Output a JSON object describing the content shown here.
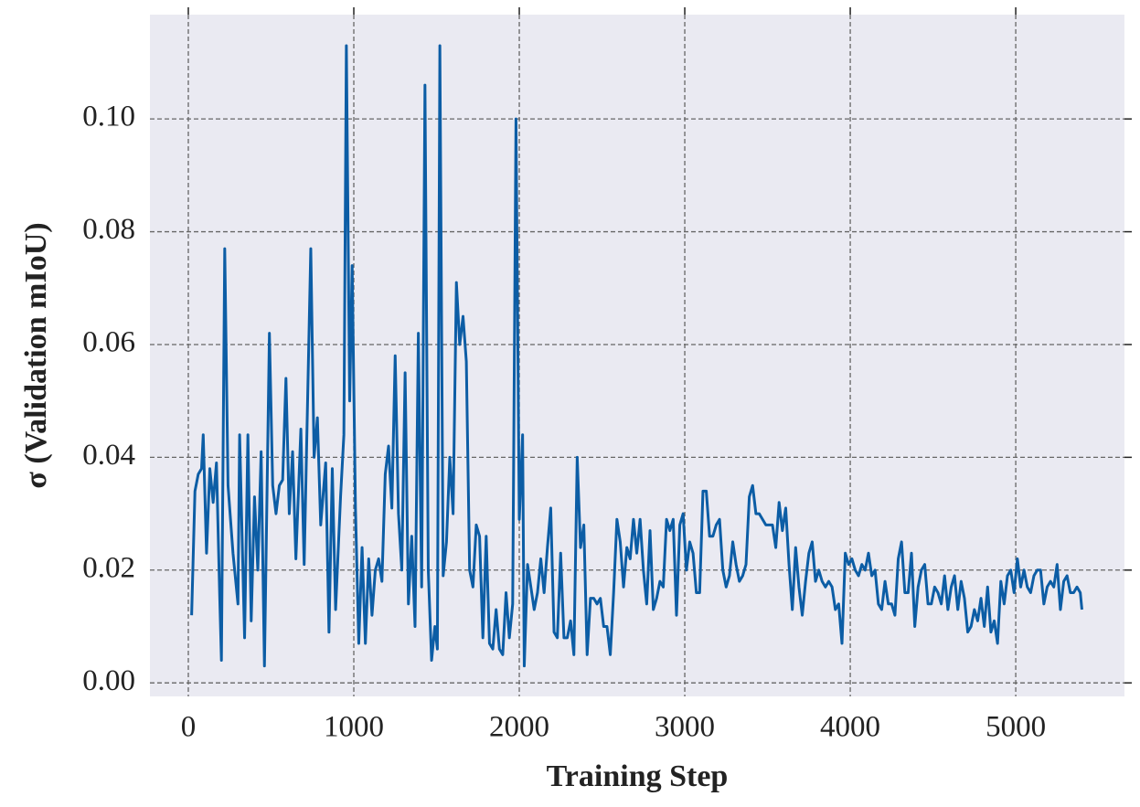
{
  "chart_data": {
    "type": "line",
    "xlabel": "Training Step",
    "ylabel": "σ (Validation mIoU)",
    "color": "#0c5da5",
    "grid": true,
    "xlim": [
      -232,
      5657
    ],
    "ylim": [
      -0.0024,
      0.1185
    ],
    "xticks": [
      0,
      1000,
      2000,
      3000,
      4000,
      5000
    ],
    "yticks": [
      {
        "value": 0,
        "label": "0.00"
      },
      {
        "value": 0.02,
        "label": "0.02"
      },
      {
        "value": 0.04,
        "label": "0.04"
      },
      {
        "value": 0.06,
        "label": "0.06"
      },
      {
        "value": 0.08,
        "label": "0.08"
      },
      {
        "value": 0.1,
        "label": "0.10"
      }
    ],
    "x": [
      20,
      40,
      60,
      80,
      90,
      110,
      130,
      150,
      170,
      190,
      200,
      220,
      240,
      270,
      300,
      310,
      340,
      360,
      380,
      400,
      420,
      440,
      460,
      490,
      510,
      530,
      550,
      570,
      590,
      610,
      630,
      650,
      680,
      700,
      740,
      760,
      780,
      800,
      830,
      850,
      870,
      890,
      920,
      940,
      955,
      975,
      990,
      1010,
      1030,
      1050,
      1070,
      1090,
      1110,
      1130,
      1150,
      1170,
      1190,
      1210,
      1230,
      1250,
      1270,
      1290,
      1310,
      1330,
      1350,
      1370,
      1390,
      1410,
      1430,
      1450,
      1470,
      1490,
      1505,
      1520,
      1540,
      1560,
      1580,
      1600,
      1620,
      1640,
      1660,
      1680,
      1700,
      1720,
      1740,
      1760,
      1780,
      1800,
      1820,
      1840,
      1860,
      1880,
      1900,
      1920,
      1940,
      1960,
      1980,
      2000,
      2020,
      2030,
      2050,
      2070,
      2090,
      2110,
      2130,
      2150,
      2170,
      2190,
      2210,
      2230,
      2250,
      2270,
      2290,
      2310,
      2330,
      2350,
      2370,
      2390,
      2410,
      2430,
      2450,
      2470,
      2490,
      2510,
      2530,
      2550,
      2570,
      2590,
      2610,
      2630,
      2650,
      2670,
      2690,
      2710,
      2730,
      2750,
      2770,
      2790,
      2810,
      2830,
      2850,
      2870,
      2890,
      2910,
      2930,
      2950,
      2970,
      2990,
      3010,
      3030,
      3050,
      3070,
      3090,
      3110,
      3130,
      3150,
      3170,
      3190,
      3210,
      3230,
      3250,
      3270,
      3290,
      3310,
      3330,
      3350,
      3370,
      3390,
      3410,
      3430,
      3450,
      3470,
      3490,
      3510,
      3530,
      3550,
      3570,
      3590,
      3610,
      3630,
      3650,
      3670,
      3690,
      3710,
      3730,
      3750,
      3770,
      3790,
      3810,
      3830,
      3850,
      3870,
      3890,
      3910,
      3930,
      3950,
      3970,
      3990,
      4010,
      4030,
      4050,
      4070,
      4090,
      4110,
      4130,
      4150,
      4170,
      4190,
      4210,
      4230,
      4250,
      4270,
      4290,
      4310,
      4330,
      4350,
      4370,
      4390,
      4410,
      4430,
      4450,
      4470,
      4490,
      4510,
      4530,
      4550,
      4570,
      4590,
      4610,
      4630,
      4650,
      4670,
      4690,
      4710,
      4730,
      4750,
      4770,
      4790,
      4810,
      4830,
      4850,
      4870,
      4890,
      4910,
      4930,
      4950,
      4970,
      4990,
      5010,
      5030,
      5050,
      5070,
      5090,
      5110,
      5130,
      5150,
      5170,
      5190,
      5210,
      5230,
      5250,
      5270,
      5290,
      5310,
      5330,
      5350,
      5370,
      5390,
      5400
    ],
    "values": [
      0.012,
      0.034,
      0.037,
      0.038,
      0.044,
      0.023,
      0.038,
      0.032,
      0.039,
      0.015,
      0.004,
      0.077,
      0.035,
      0.023,
      0.014,
      0.044,
      0.008,
      0.044,
      0.011,
      0.033,
      0.02,
      0.041,
      0.003,
      0.062,
      0.035,
      0.03,
      0.035,
      0.036,
      0.054,
      0.03,
      0.041,
      0.022,
      0.045,
      0.021,
      0.077,
      0.04,
      0.047,
      0.028,
      0.039,
      0.009,
      0.038,
      0.013,
      0.033,
      0.044,
      0.113,
      0.05,
      0.074,
      0.031,
      0.007,
      0.024,
      0.007,
      0.022,
      0.012,
      0.02,
      0.022,
      0.018,
      0.037,
      0.042,
      0.031,
      0.058,
      0.03,
      0.02,
      0.055,
      0.014,
      0.026,
      0.01,
      0.062,
      0.017,
      0.106,
      0.02,
      0.004,
      0.01,
      0.006,
      0.113,
      0.019,
      0.025,
      0.04,
      0.03,
      0.071,
      0.06,
      0.065,
      0.057,
      0.02,
      0.017,
      0.028,
      0.026,
      0.008,
      0.026,
      0.007,
      0.006,
      0.013,
      0.006,
      0.005,
      0.016,
      0.008,
      0.014,
      0.1,
      0.029,
      0.044,
      0.003,
      0.021,
      0.017,
      0.013,
      0.016,
      0.022,
      0.016,
      0.024,
      0.031,
      0.009,
      0.008,
      0.023,
      0.008,
      0.008,
      0.011,
      0.005,
      0.04,
      0.024,
      0.028,
      0.005,
      0.015,
      0.015,
      0.014,
      0.015,
      0.01,
      0.01,
      0.005,
      0.016,
      0.029,
      0.025,
      0.017,
      0.024,
      0.022,
      0.029,
      0.023,
      0.029,
      0.02,
      0.014,
      0.027,
      0.013,
      0.015,
      0.018,
      0.017,
      0.029,
      0.027,
      0.029,
      0.012,
      0.028,
      0.03,
      0.02,
      0.025,
      0.023,
      0.016,
      0.016,
      0.034,
      0.034,
      0.026,
      0.026,
      0.028,
      0.029,
      0.02,
      0.017,
      0.019,
      0.025,
      0.021,
      0.018,
      0.019,
      0.021,
      0.033,
      0.035,
      0.03,
      0.03,
      0.029,
      0.028,
      0.028,
      0.028,
      0.024,
      0.032,
      0.027,
      0.031,
      0.021,
      0.013,
      0.024,
      0.017,
      0.012,
      0.018,
      0.023,
      0.025,
      0.018,
      0.02,
      0.018,
      0.017,
      0.018,
      0.017,
      0.013,
      0.014,
      0.007,
      0.023,
      0.021,
      0.022,
      0.02,
      0.019,
      0.021,
      0.02,
      0.023,
      0.019,
      0.02,
      0.014,
      0.013,
      0.018,
      0.014,
      0.014,
      0.012,
      0.022,
      0.025,
      0.016,
      0.016,
      0.023,
      0.01,
      0.017,
      0.02,
      0.021,
      0.014,
      0.014,
      0.017,
      0.016,
      0.014,
      0.019,
      0.013,
      0.017,
      0.019,
      0.013,
      0.018,
      0.015,
      0.009,
      0.01,
      0.013,
      0.011,
      0.015,
      0.01,
      0.017,
      0.009,
      0.011,
      0.007,
      0.018,
      0.014,
      0.019,
      0.02,
      0.016,
      0.022,
      0.017,
      0.02,
      0.017,
      0.016,
      0.019,
      0.02,
      0.02,
      0.014,
      0.017,
      0.018,
      0.017,
      0.021,
      0.013,
      0.018,
      0.019,
      0.016,
      0.016,
      0.017,
      0.016,
      0.013
    ]
  }
}
